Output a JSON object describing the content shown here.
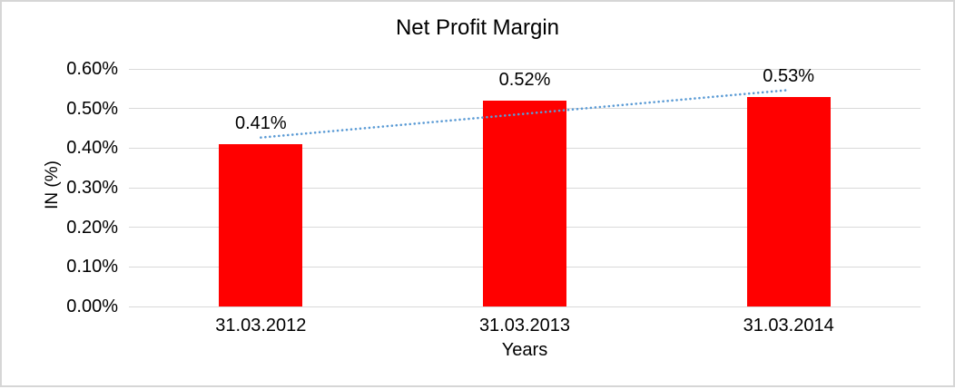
{
  "chart": {
    "title": "Net Profit Margin",
    "y_axis_title": "IN (%)",
    "x_axis_title": "Years"
  },
  "chart_data": {
    "type": "bar",
    "title": "Net Profit Margin",
    "xlabel": "Years",
    "ylabel": "IN (%)",
    "categories": [
      "31.03.2012",
      "31.03.2013",
      "31.03.2014"
    ],
    "values": [
      0.41,
      0.52,
      0.53
    ],
    "data_labels": [
      "0.41%",
      "0.52%",
      "0.53%"
    ],
    "ylim": [
      0,
      0.6
    ],
    "ytick_values": [
      0,
      0.1,
      0.2,
      0.3,
      0.4,
      0.5,
      0.6
    ],
    "ytick_labels": [
      "0.00%",
      "0.10%",
      "0.20%",
      "0.30%",
      "0.40%",
      "0.50%",
      "0.60%"
    ],
    "grid": true,
    "legend": false,
    "bar_color": "#FF0000",
    "trendline": {
      "type": "linear",
      "style": "dotted",
      "color": "#5B9BD5"
    },
    "colors": {
      "gridline": "#D9D9D9",
      "axis_line": "#D9D9D9",
      "text": "#000000",
      "frame_border": "#D6D6D6",
      "background": "#FFFFFF"
    }
  }
}
